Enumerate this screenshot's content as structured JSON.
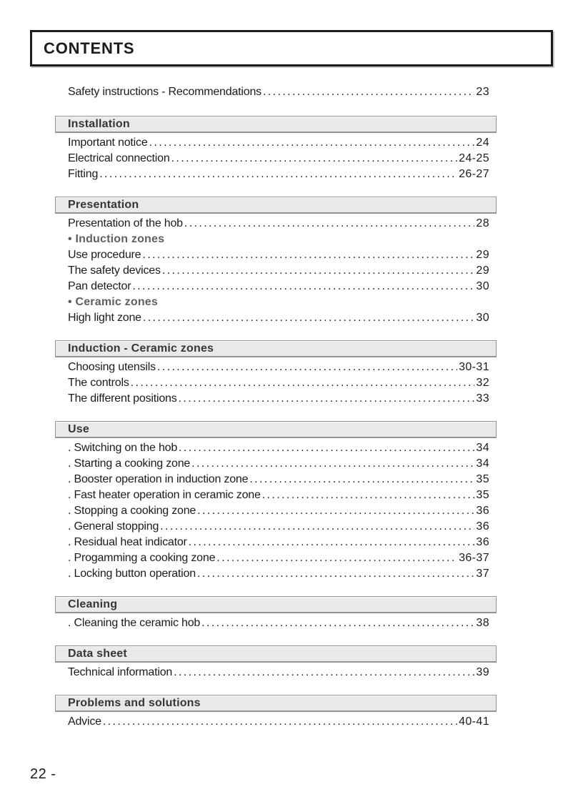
{
  "page": {
    "title": "CONTENTS",
    "page_number": "22 -"
  },
  "toc": {
    "intro_entries": [
      {
        "label": "Safety instructions - Recommendations",
        "page": "23"
      }
    ],
    "sections": [
      {
        "header": "Installation",
        "items": [
          {
            "type": "entry",
            "label": "Important notice",
            "page": "24"
          },
          {
            "type": "entry",
            "label": "Electrical connection",
            "page": "24-25"
          },
          {
            "type": "entry",
            "label": "Fitting",
            "page": "26-27"
          }
        ]
      },
      {
        "header": "Presentation",
        "items": [
          {
            "type": "entry",
            "label": "Presentation of the hob",
            "page": "28"
          },
          {
            "type": "subheading",
            "label": "• Induction zones"
          },
          {
            "type": "entry",
            "label": "Use procedure",
            "page": "29"
          },
          {
            "type": "entry",
            "label": "The safety devices",
            "page": "29"
          },
          {
            "type": "entry",
            "label": "Pan detector",
            "page": "30"
          },
          {
            "type": "subheading",
            "label": "• Ceramic zones"
          },
          {
            "type": "entry",
            "label": "High light zone",
            "page": "30"
          }
        ]
      },
      {
        "header": "Induction - Ceramic zones",
        "items": [
          {
            "type": "entry",
            "label": "Choosing utensils",
            "page": "30-31"
          },
          {
            "type": "entry",
            "label": "The controls",
            "page": "32"
          },
          {
            "type": "entry",
            "label": "The different positions",
            "page": "33"
          }
        ]
      },
      {
        "header": "Use",
        "items": [
          {
            "type": "entry",
            "label": ". Switching on the hob",
            "page": "34"
          },
          {
            "type": "entry",
            "label": ". Starting a cooking zone",
            "page": "34"
          },
          {
            "type": "entry",
            "label": ". Booster operation in induction zone",
            "page": "35"
          },
          {
            "type": "entry",
            "label": ". Fast heater operation in ceramic zone",
            "page": "35"
          },
          {
            "type": "entry",
            "label": ". Stopping a cooking zone",
            "page": "36"
          },
          {
            "type": "entry",
            "label": ". General stopping",
            "page": "36"
          },
          {
            "type": "entry",
            "label": ". Residual heat indicator",
            "page": "36"
          },
          {
            "type": "entry",
            "label": ". Progamming a cooking zone",
            "page": "36-37"
          },
          {
            "type": "entry",
            "label": ". Locking button operation",
            "page": "37"
          }
        ]
      },
      {
        "header": "Cleaning",
        "items": [
          {
            "type": "entry",
            "label": ". Cleaning the ceramic hob",
            "page": "38"
          }
        ]
      },
      {
        "header": "Data sheet",
        "items": [
          {
            "type": "entry",
            "label": "Technical information",
            "page": "39"
          }
        ]
      },
      {
        "header": "Problems and solutions",
        "items": [
          {
            "type": "entry",
            "label": "Advice",
            "page": "40-41"
          }
        ]
      }
    ]
  },
  "colors": {
    "entry_text": "#1b1b1b",
    "section_header_text": "#363636",
    "subheading_text": "#606060",
    "section_header_bg": "#e9e9e9",
    "section_header_border": "#949494",
    "title_border": "#1c1c1c"
  }
}
